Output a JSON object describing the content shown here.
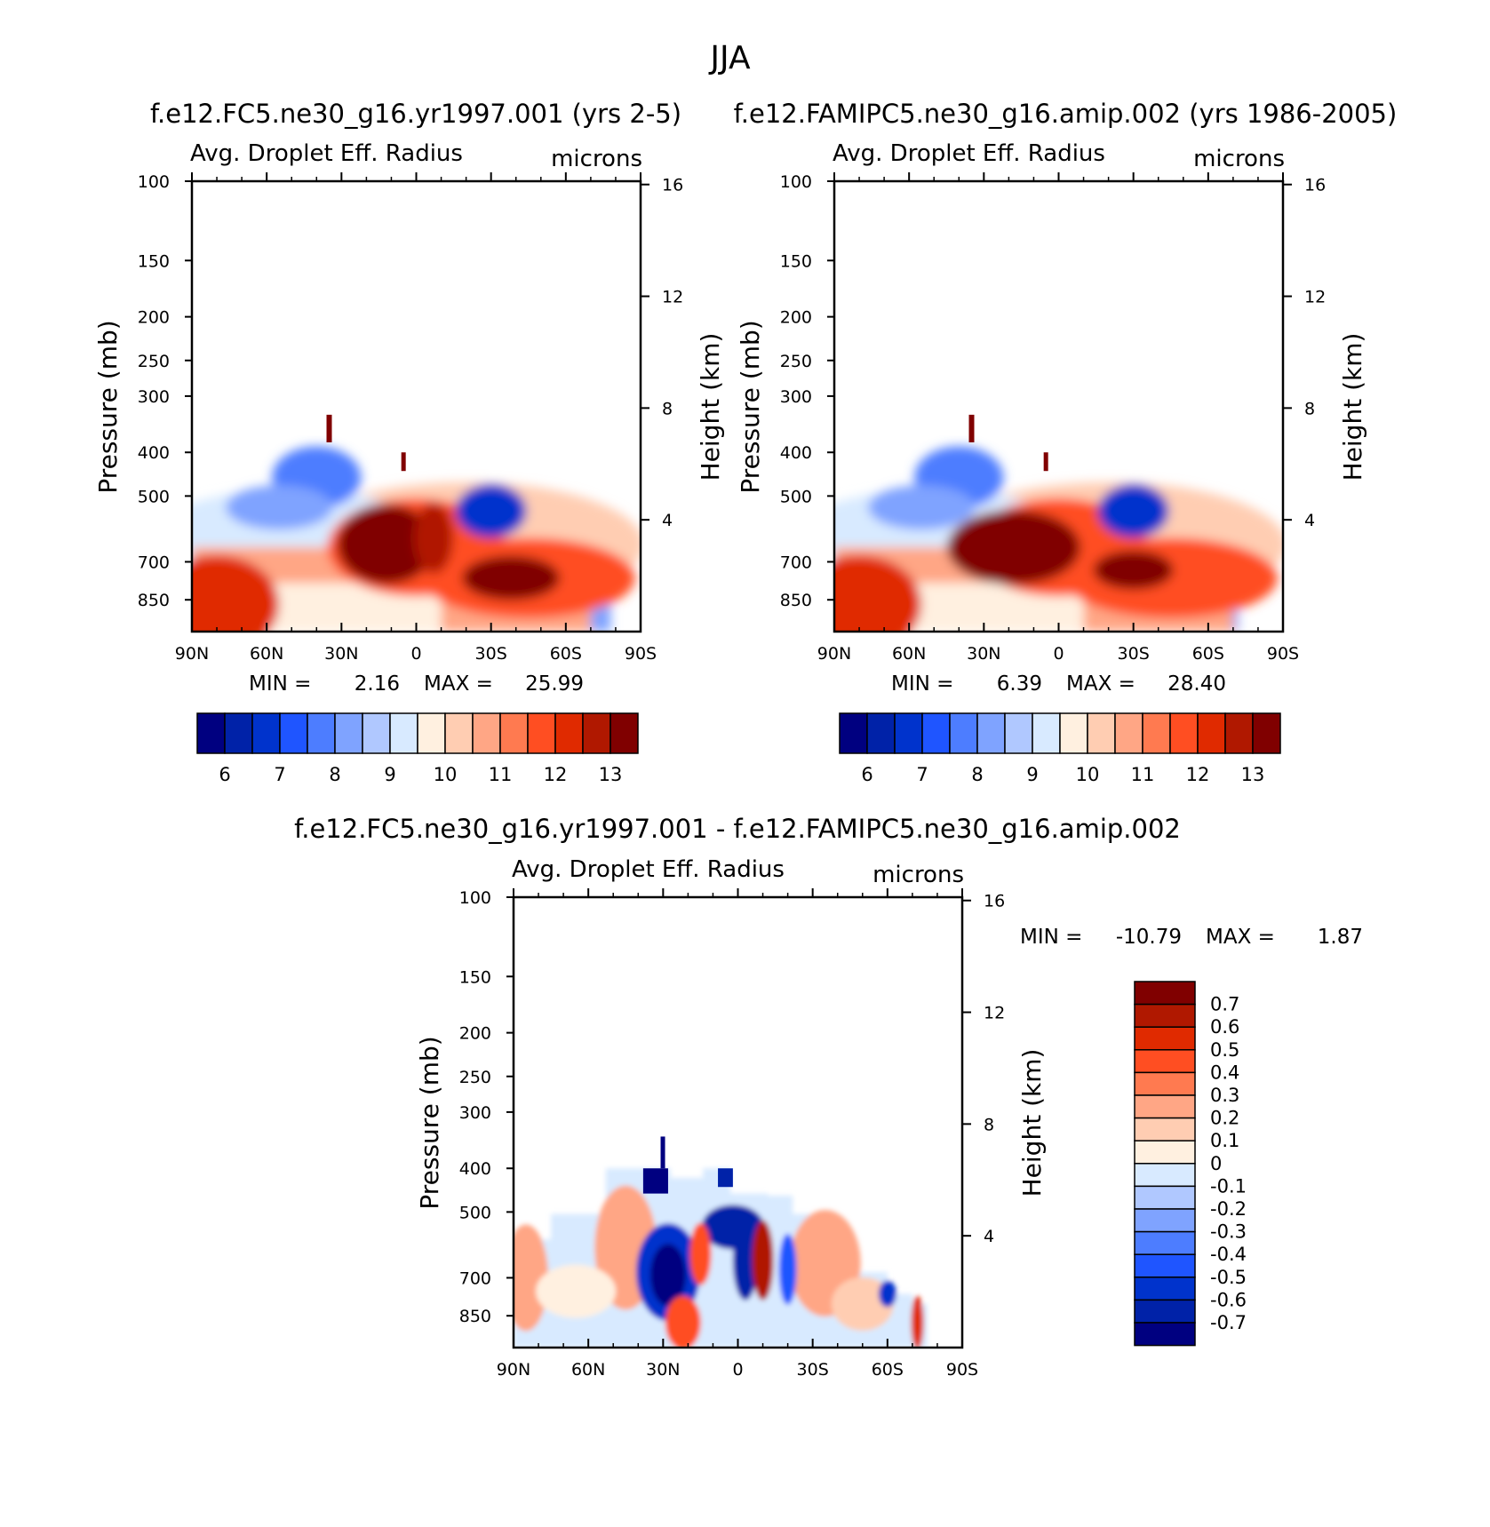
{
  "figure": {
    "title": "JJA",
    "colors": {
      "abs_palette": [
        "#000080",
        "#0022a8",
        "#0033cc",
        "#1f55ff",
        "#4d7dff",
        "#7fa3ff",
        "#b0c8ff",
        "#d8eaff",
        "#fff0e0",
        "#ffcdb2",
        "#ffa685",
        "#ff7a50",
        "#ff4e22",
        "#e02a00",
        "#b01800",
        "#800000"
      ],
      "diff_palette": [
        "#000080",
        "#0022a8",
        "#0033cc",
        "#1f55ff",
        "#4d7dff",
        "#7fa3ff",
        "#b0c8ff",
        "#d8eaff",
        "#fff0e0",
        "#ffcdb2",
        "#ffa685",
        "#ff7a50",
        "#ff4e22",
        "#e02a00",
        "#b01800",
        "#800000"
      ]
    }
  },
  "chart_data": [
    {
      "type": "heatmap",
      "title": "f.e12.FC5.ne30_g16.yr1997.001 (yrs 2-5)",
      "subtitle_left": "Avg. Droplet Eff. Radius",
      "subtitle_right": "microns",
      "xlabel": "",
      "ylabel": "Pressure (mb)",
      "ylabel_right": "Height (km)",
      "x_ticks": [
        "90N",
        "60N",
        "30N",
        "0",
        "30S",
        "60S",
        "90S"
      ],
      "y_ticks": [
        "100",
        "150",
        "200",
        "250",
        "300",
        "400",
        "500",
        "700",
        "850"
      ],
      "y_ticks_right": [
        "16",
        "12",
        "8",
        "4"
      ],
      "log_y": true,
      "stats": {
        "min_label": "MIN =",
        "min": "2.16",
        "max_label": "MAX =",
        "max": "25.99"
      },
      "colorbar": {
        "orientation": "horizontal",
        "labels": [
          "6",
          "7",
          "8",
          "9",
          "10",
          "11",
          "12",
          "13"
        ],
        "levels": [
          5.5,
          6,
          6.5,
          7,
          7.5,
          8,
          8.5,
          9,
          9.5,
          10,
          10.5,
          11,
          11.5,
          12,
          12.5,
          13,
          13.5
        ]
      }
    },
    {
      "type": "heatmap",
      "title": "f.e12.FAMIPC5.ne30_g16.amip.002 (yrs 1986-2005)",
      "subtitle_left": "Avg. Droplet Eff. Radius",
      "subtitle_right": "microns",
      "xlabel": "",
      "ylabel": "Pressure (mb)",
      "ylabel_right": "Height (km)",
      "x_ticks": [
        "90N",
        "60N",
        "30N",
        "0",
        "30S",
        "60S",
        "90S"
      ],
      "y_ticks": [
        "100",
        "150",
        "200",
        "250",
        "300",
        "400",
        "500",
        "700",
        "850"
      ],
      "y_ticks_right": [
        "16",
        "12",
        "8",
        "4"
      ],
      "log_y": true,
      "stats": {
        "min_label": "MIN =",
        "min": "6.39",
        "max_label": "MAX =",
        "max": "28.40"
      },
      "colorbar": {
        "orientation": "horizontal",
        "labels": [
          "6",
          "7",
          "8",
          "9",
          "10",
          "11",
          "12",
          "13"
        ],
        "levels": [
          5.5,
          6,
          6.5,
          7,
          7.5,
          8,
          8.5,
          9,
          9.5,
          10,
          10.5,
          11,
          11.5,
          12,
          12.5,
          13,
          13.5
        ]
      }
    },
    {
      "type": "heatmap",
      "title": "f.e12.FC5.ne30_g16.yr1997.001 - f.e12.FAMIPC5.ne30_g16.amip.002",
      "subtitle_left": "Avg. Droplet Eff. Radius",
      "subtitle_right": "microns",
      "xlabel": "",
      "ylabel": "Pressure (mb)",
      "ylabel_right": "Height (km)",
      "x_ticks": [
        "90N",
        "60N",
        "30N",
        "0",
        "30S",
        "60S",
        "90S"
      ],
      "y_ticks": [
        "100",
        "150",
        "200",
        "250",
        "300",
        "400",
        "500",
        "700",
        "850"
      ],
      "y_ticks_right": [
        "16",
        "12",
        "8",
        "4"
      ],
      "log_y": true,
      "stats": {
        "min_label": "MIN =",
        "min": "-10.79",
        "max_label": "MAX =",
        "max": "1.87"
      },
      "colorbar": {
        "orientation": "vertical",
        "labels": [
          "0.7",
          "0.6",
          "0.5",
          "0.4",
          "0.3",
          "0.2",
          "0.1",
          "0",
          "-0.1",
          "-0.2",
          "-0.3",
          "-0.4",
          "-0.5",
          "-0.6",
          "-0.7"
        ],
        "levels": [
          -0.8,
          -0.7,
          -0.6,
          -0.5,
          -0.4,
          -0.3,
          -0.2,
          -0.1,
          0,
          0.1,
          0.2,
          0.3,
          0.4,
          0.5,
          0.6,
          0.7,
          0.8
        ]
      }
    }
  ]
}
